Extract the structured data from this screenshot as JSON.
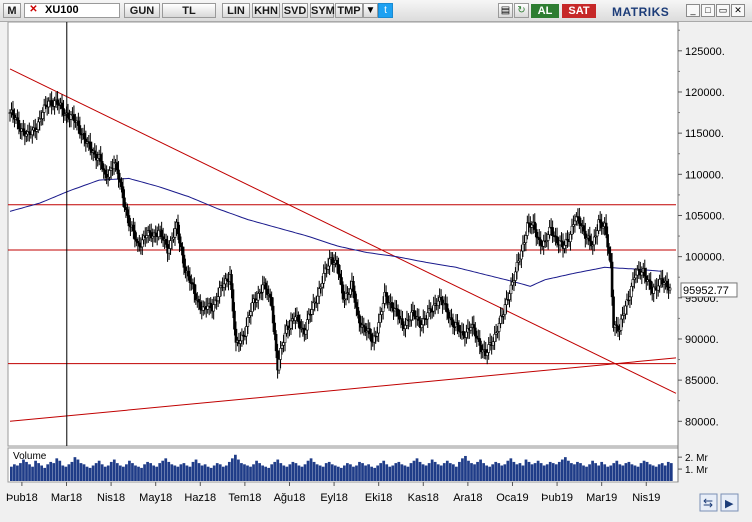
{
  "toolbar": {
    "logo": "M",
    "symbol": "XU100",
    "buttons": [
      "GUN",
      "TL",
      "LIN",
      "KHN",
      "SVD",
      "SYM",
      "TMP"
    ],
    "al": "AL",
    "sat": "SAT",
    "brand": "MATRIKS"
  },
  "colors": {
    "price": "#000000",
    "moving_average": "#1a1a8c",
    "trendline": "#c00000",
    "volume": "#1f3c88",
    "last_price_box": "#ffffff"
  },
  "chart_data": [
    {
      "type": "candlestick",
      "title": "",
      "xlabel": "",
      "ylabel": "",
      "x_tick_labels": [
        "Þub18",
        "Mar18",
        "Nis18",
        "May18",
        "Haz18",
        "Tem18",
        "Ağu18",
        "Eyl18",
        "Eki18",
        "Kas18",
        "Ara18",
        "Oca19",
        "Þub19",
        "Mar19",
        "Nis19"
      ],
      "y_tick_labels": [
        "125000.",
        "120000.",
        "115000.",
        "110000.",
        "105000.",
        "100000.",
        "95000.",
        "90000.",
        "85000.",
        "80000."
      ],
      "y_ticks": [
        125000,
        120000,
        115000,
        110000,
        105000,
        100000,
        95000,
        90000,
        85000,
        80000
      ],
      "ylim": [
        77000,
        128500
      ],
      "last_price_label": "95952.77",
      "last_price": 95952.77,
      "grid": false,
      "price_anchors": [
        [
          0.0,
          117500
        ],
        [
          0.3,
          116000
        ],
        [
          0.6,
          114500
        ],
        [
          1.0,
          116500
        ],
        [
          1.3,
          119000
        ],
        [
          1.6,
          118500
        ],
        [
          2.0,
          117000
        ],
        [
          2.3,
          116000
        ],
        [
          2.6,
          113500
        ],
        [
          3.0,
          112000
        ],
        [
          3.2,
          109500
        ],
        [
          3.5,
          111500
        ],
        [
          3.8,
          107500
        ],
        [
          4.0,
          104000
        ],
        [
          4.3,
          101500
        ],
        [
          4.6,
          102500
        ],
        [
          5.0,
          103000
        ],
        [
          5.3,
          101000
        ],
        [
          5.6,
          103500
        ],
        [
          5.9,
          98500
        ],
        [
          6.2,
          95500
        ],
        [
          6.5,
          93500
        ],
        [
          6.8,
          94000
        ],
        [
          7.1,
          96000
        ],
        [
          7.4,
          98000
        ],
        [
          7.6,
          89000
        ],
        [
          7.9,
          91000
        ],
        [
          8.2,
          94500
        ],
        [
          8.5,
          96500
        ],
        [
          8.8,
          94500
        ],
        [
          9.0,
          86500
        ],
        [
          9.3,
          91500
        ],
        [
          9.6,
          92500
        ],
        [
          9.9,
          91000
        ],
        [
          10.2,
          94000
        ],
        [
          10.5,
          97000
        ],
        [
          10.8,
          100000
        ],
        [
          11.0,
          99000
        ],
        [
          11.2,
          95000
        ],
        [
          11.5,
          96500
        ],
        [
          11.7,
          92500
        ],
        [
          12.0,
          91000
        ],
        [
          12.2,
          89500
        ],
        [
          12.4,
          92000
        ],
        [
          12.6,
          95000
        ],
        [
          12.9,
          94000
        ],
        [
          13.2,
          91500
        ],
        [
          13.5,
          93000
        ],
        [
          13.8,
          92000
        ],
        [
          14.1,
          93000
        ],
        [
          14.4,
          95000
        ],
        [
          14.6,
          94000
        ],
        [
          14.9,
          92000
        ],
        [
          15.2,
          90500
        ],
        [
          15.5,
          91500
        ],
        [
          15.8,
          89500
        ],
        [
          16.0,
          88000
        ],
        [
          16.2,
          89500
        ],
        [
          16.4,
          91500
        ],
        [
          16.6,
          93000
        ],
        [
          16.8,
          96000
        ],
        [
          17.0,
          98000
        ],
        [
          17.2,
          100500
        ],
        [
          17.4,
          104000
        ],
        [
          17.6,
          103500
        ],
        [
          17.8,
          102000
        ],
        [
          18.0,
          101500
        ],
        [
          18.2,
          103500
        ],
        [
          18.4,
          102000
        ],
        [
          18.6,
          101000
        ],
        [
          18.8,
          102500
        ],
        [
          19.0,
          104500
        ],
        [
          19.2,
          104000
        ],
        [
          19.4,
          102500
        ],
        [
          19.6,
          101000
        ],
        [
          19.8,
          104500
        ],
        [
          20.0,
          103500
        ],
        [
          20.2,
          99000
        ],
        [
          20.3,
          92000
        ],
        [
          20.5,
          91000
        ],
        [
          20.7,
          94000
        ],
        [
          21.0,
          97500
        ],
        [
          21.3,
          98500
        ],
        [
          21.6,
          95500
        ],
        [
          21.9,
          97500
        ],
        [
          22.0,
          96500
        ],
        [
          22.2,
          95950
        ]
      ],
      "moving_average_anchors": [
        [
          0.0,
          105500
        ],
        [
          1.0,
          106500
        ],
        [
          2.0,
          108000
        ],
        [
          3.0,
          109300
        ],
        [
          4.0,
          109500
        ],
        [
          5.0,
          108500
        ],
        [
          6.0,
          107300
        ],
        [
          7.0,
          105800
        ],
        [
          8.0,
          104500
        ],
        [
          9.0,
          103500
        ],
        [
          10.0,
          102500
        ],
        [
          11.0,
          101300
        ],
        [
          12.0,
          100500
        ],
        [
          13.0,
          100000
        ],
        [
          14.0,
          99300
        ],
        [
          15.0,
          98700
        ],
        [
          16.0,
          97800
        ],
        [
          17.0,
          96900
        ],
        [
          17.5,
          96400
        ],
        [
          18.0,
          97200
        ],
        [
          19.0,
          98000
        ],
        [
          20.0,
          98700
        ],
        [
          21.0,
          98500
        ],
        [
          22.0,
          98200
        ]
      ],
      "horizontal_levels": [
        106300,
        100800,
        87000
      ],
      "trendlines": [
        {
          "from": [
            0.0,
            122800
          ],
          "to": [
            22.4,
            83400
          ]
        },
        {
          "from": [
            0.0,
            80000
          ],
          "to": [
            22.4,
            87700
          ]
        }
      ],
      "cursor_line_x": 1.91
    },
    {
      "type": "bar",
      "title": "Volume",
      "y_tick_labels": [
        "2. Mr",
        "1. Mr"
      ],
      "y_ticks": [
        2.0,
        1.0
      ],
      "ylim": [
        0,
        2.6
      ],
      "unit": "billion (Mr)",
      "values": [
        1.2,
        1.4,
        1.3,
        1.5,
        1.8,
        1.6,
        1.4,
        1.2,
        1.7,
        1.5,
        1.3,
        1.1,
        1.4,
        1.6,
        1.5,
        1.9,
        1.7,
        1.3,
        1.2,
        1.4,
        1.6,
        2.0,
        1.8,
        1.5,
        1.4,
        1.2,
        1.1,
        1.3,
        1.5,
        1.7,
        1.4,
        1.2,
        1.3,
        1.6,
        1.8,
        1.5,
        1.3,
        1.2,
        1.4,
        1.7,
        1.5,
        1.3,
        1.2,
        1.1,
        1.4,
        1.6,
        1.5,
        1.3,
        1.2,
        1.5,
        1.7,
        1.9,
        1.6,
        1.4,
        1.3,
        1.2,
        1.4,
        1.5,
        1.3,
        1.2,
        1.6,
        1.8,
        1.5,
        1.3,
        1.4,
        1.2,
        1.1,
        1.3,
        1.5,
        1.4,
        1.2,
        1.3,
        1.6,
        1.9,
        2.2,
        1.8,
        1.5,
        1.4,
        1.3,
        1.2,
        1.4,
        1.7,
        1.5,
        1.3,
        1.2,
        1.1,
        1.4,
        1.6,
        1.8,
        1.5,
        1.3,
        1.2,
        1.4,
        1.6,
        1.5,
        1.3,
        1.2,
        1.4,
        1.7,
        1.9,
        1.6,
        1.4,
        1.3,
        1.2,
        1.5,
        1.6,
        1.4,
        1.3,
        1.2,
        1.1,
        1.3,
        1.5,
        1.4,
        1.2,
        1.3,
        1.6,
        1.5,
        1.3,
        1.4,
        1.2,
        1.1,
        1.3,
        1.5,
        1.7,
        1.4,
        1.2,
        1.3,
        1.5,
        1.6,
        1.4,
        1.3,
        1.2,
        1.5,
        1.7,
        1.9,
        1.6,
        1.4,
        1.3,
        1.5,
        1.8,
        1.6,
        1.4,
        1.3,
        1.5,
        1.7,
        1.5,
        1.4,
        1.2,
        1.6,
        1.9,
        2.1,
        1.7,
        1.5,
        1.4,
        1.6,
        1.8,
        1.5,
        1.3,
        1.2,
        1.4,
        1.6,
        1.5,
        1.3,
        1.4,
        1.7,
        1.9,
        1.6,
        1.4,
        1.5,
        1.3,
        1.8,
        1.6,
        1.4,
        1.5,
        1.7,
        1.5,
        1.3,
        1.4,
        1.6,
        1.5,
        1.4,
        1.6,
        1.8,
        2.0,
        1.7,
        1.5,
        1.4,
        1.6,
        1.5,
        1.3,
        1.2,
        1.4,
        1.7,
        1.5,
        1.3,
        1.6,
        1.4,
        1.2,
        1.3,
        1.5,
        1.7,
        1.4,
        1.3,
        1.5,
        1.6,
        1.4,
        1.3,
        1.2,
        1.5,
        1.7,
        1.6,
        1.4,
        1.3,
        1.2,
        1.4,
        1.5,
        1.3,
        1.6,
        1.5,
        1.3
      ]
    }
  ]
}
